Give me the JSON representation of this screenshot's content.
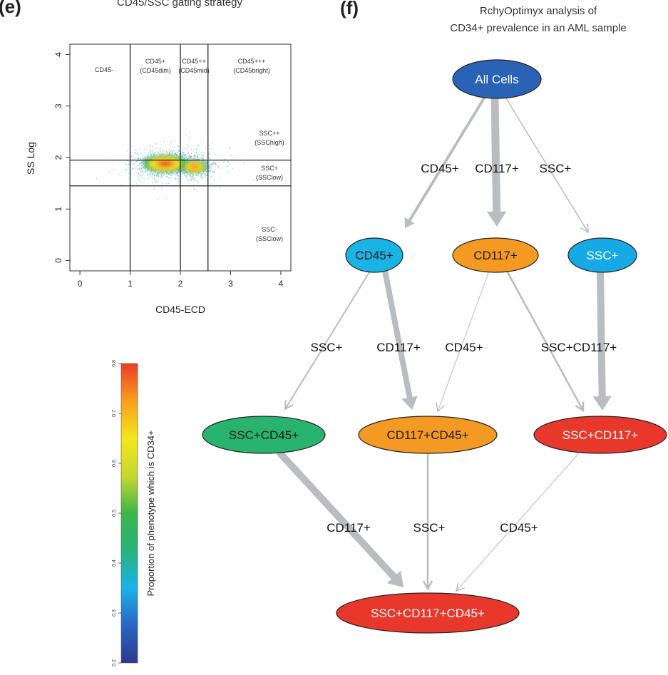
{
  "panels": {
    "e": {
      "letter": "(e)",
      "title": "CD45/SSC gating strategy"
    },
    "f": {
      "letter": "(f)",
      "title_line1": "RchyOptimyx analysis of",
      "title_line2": "CD34+ prevalence in an AML sample"
    }
  },
  "chart_data": [
    {
      "type": "scatter",
      "title": "CD45/SSC gating strategy",
      "xlabel": "CD45-ECD",
      "ylabel": "SS Log",
      "xlim": [
        -0.2,
        4.2
      ],
      "ylim": [
        -0.2,
        4.2
      ],
      "xticks": [
        "0",
        "1",
        "2",
        "3",
        "4"
      ],
      "yticks": [
        "0",
        "1",
        "2",
        "3",
        "4"
      ],
      "grid": false,
      "vertical_gates": [
        1.0,
        2.0,
        2.55
      ],
      "horizontal_gates": [
        1.45,
        1.95
      ],
      "gate_labels": {
        "cd45_neg": "CD45-",
        "cd45_dim": "CD45+",
        "cd45_dim_sub": "(CD45dim)",
        "cd45_mid": "CD45++",
        "cd45_mid_sub": "(CD45mid)",
        "cd45_bright": "CD45+++",
        "cd45_bright_sub": "(CD45bright)",
        "ssc_high": "SSC++",
        "ssc_high_sub": "(SSChigh)",
        "ssc_low": "SSC+",
        "ssc_low_sub": "(SSClow)",
        "ssc_neg": "SSC-",
        "ssc_neg_sub": "(SSClow)"
      },
      "density_clusters": [
        {
          "x": 1.7,
          "y": 1.88,
          "sx": 0.32,
          "sy": 0.12,
          "weight": 1.0
        },
        {
          "x": 2.28,
          "y": 1.82,
          "sx": 0.18,
          "sy": 0.09,
          "weight": 0.55
        },
        {
          "x": 2.0,
          "y": 1.85,
          "sx": 0.55,
          "sy": 0.22,
          "weight": 0.35
        }
      ]
    },
    {
      "type": "colorbar",
      "label": "Proportion of phenotype which is CD34+",
      "range": [
        0.2,
        0.8
      ],
      "ticks": [
        "0.2",
        "0.3",
        "0.4",
        "0.5",
        "0.6",
        "0.7",
        "0.8"
      ],
      "colors": [
        "#2b3990",
        "#2a66c4",
        "#1ab2e8",
        "#27b47c",
        "#3fb54a",
        "#c6d92f",
        "#f6e51b",
        "#f7a01e",
        "#ee3b24"
      ]
    },
    {
      "type": "diagram",
      "nodes": [
        {
          "id": "all",
          "label": "All Cells",
          "color": "#2a63b6",
          "text": "#ffffff"
        },
        {
          "id": "cd45",
          "label": "CD45+",
          "color": "#1ab3e6",
          "text": "#1a1a1a"
        },
        {
          "id": "cd117",
          "label": "CD117+",
          "color": "#f49a22",
          "text": "#1a1a1a"
        },
        {
          "id": "ssc",
          "label": "SSC+",
          "color": "#16a9e6",
          "text": "#ffffff"
        },
        {
          "id": "ssc_cd45",
          "label": "SSC+CD45+",
          "color": "#28b36f",
          "text": "#1a1a1a"
        },
        {
          "id": "cd117_cd45",
          "label": "CD117+CD45+",
          "color": "#f49a22",
          "text": "#1a1a1a"
        },
        {
          "id": "ssc_cd117",
          "label": "SSC+CD117+",
          "color": "#e8372b",
          "text": "#ffffff"
        },
        {
          "id": "ssc_cd117_cd45",
          "label": "SSC+CD117+CD45+",
          "color": "#e8372b",
          "text": "#ffffff"
        }
      ],
      "edges": [
        {
          "from": "all",
          "to": "cd45",
          "label": "CD45+",
          "weight": 4
        },
        {
          "from": "all",
          "to": "cd117",
          "label": "CD117+",
          "weight": 11
        },
        {
          "from": "all",
          "to": "ssc",
          "label": "SSC+",
          "weight": 1.5
        },
        {
          "from": "cd45",
          "to": "ssc_cd45",
          "label": "SSC+",
          "weight": 2
        },
        {
          "from": "cd45",
          "to": "cd117_cd45",
          "label": "CD117+",
          "weight": 8
        },
        {
          "from": "cd117",
          "to": "cd117_cd45",
          "label": "CD45+",
          "weight": 1
        },
        {
          "from": "cd117",
          "to": "ssc_cd117",
          "label": "SSC+",
          "weight": 2.5
        },
        {
          "from": "ssc",
          "to": "ssc_cd117",
          "label": "CD117+",
          "weight": 10
        },
        {
          "from": "ssc_cd45",
          "to": "ssc_cd117_cd45",
          "label": "CD117+",
          "weight": 10
        },
        {
          "from": "cd117_cd45",
          "to": "ssc_cd117_cd45",
          "label": "SSC+",
          "weight": 2.5
        },
        {
          "from": "ssc_cd117",
          "to": "ssc_cd117_cd45",
          "label": "CD45+",
          "weight": 1
        }
      ]
    }
  ]
}
